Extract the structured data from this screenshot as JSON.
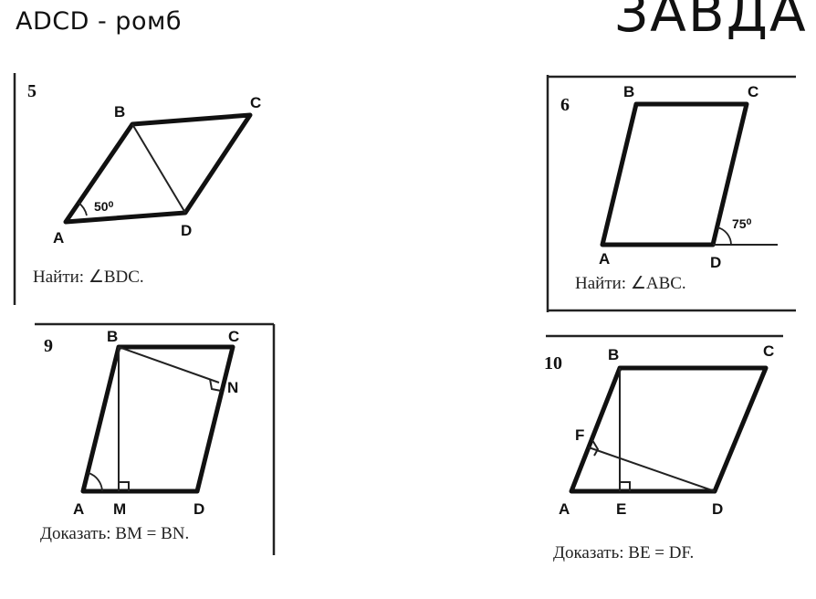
{
  "header": {
    "subtitle": "ADCD - ромб",
    "title": "ЗАВДА"
  },
  "problems": [
    {
      "number": "5",
      "vertices": {
        "A": "A",
        "B": "B",
        "C": "C",
        "D": "D"
      },
      "angle_label": "50⁰",
      "task": "Найти:  ∠BDC."
    },
    {
      "number": "6",
      "vertices": {
        "A": "A",
        "B": "B",
        "C": "C",
        "D": "D"
      },
      "angle_label": "75⁰",
      "task": "Найти:  ∠ABC."
    },
    {
      "number": "9",
      "vertices": {
        "A": "A",
        "B": "B",
        "C": "C",
        "D": "D",
        "M": "M",
        "N": "N"
      },
      "task": "Доказать:  BM  =  BN."
    },
    {
      "number": "10",
      "vertices": {
        "A": "A",
        "B": "B",
        "C": "C",
        "D": "D",
        "E": "E",
        "F": "F"
      },
      "task": "Доказать:  BE  =  DF."
    }
  ]
}
